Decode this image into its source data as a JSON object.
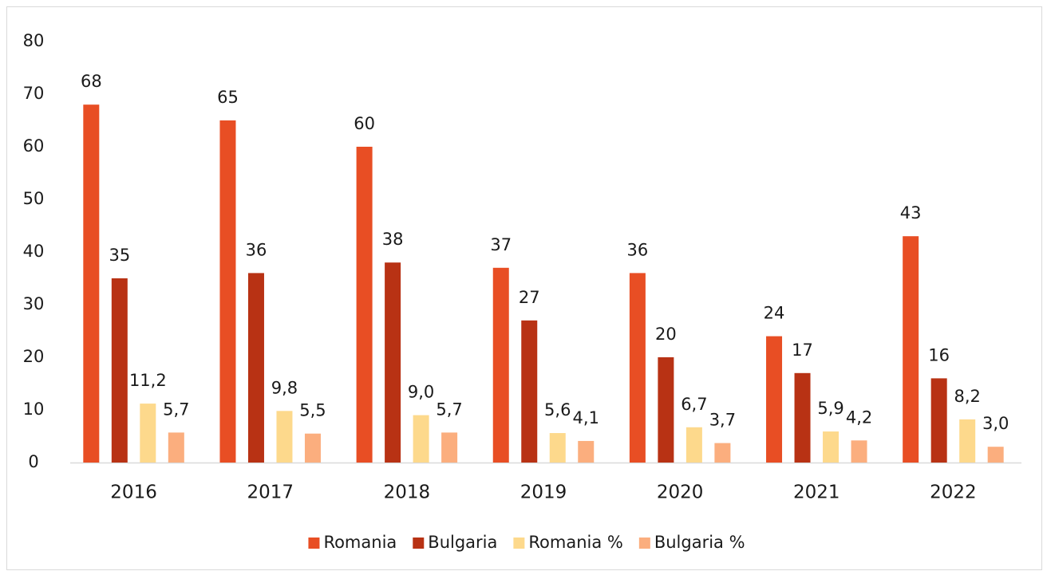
{
  "chart_data": {
    "type": "bar",
    "categories": [
      "2016",
      "2017",
      "2018",
      "2019",
      "2020",
      "2021",
      "2022"
    ],
    "series": [
      {
        "name": "Romania",
        "color": "#e84e24",
        "values": [
          68,
          65,
          60,
          37,
          36,
          24,
          43
        ]
      },
      {
        "name": "Bulgaria",
        "color": "#b83214",
        "values": [
          35,
          36,
          38,
          27,
          20,
          17,
          16
        ]
      },
      {
        "name": "Romania %",
        "color": "#fdd98c",
        "values": [
          11.2,
          9.8,
          9.0,
          5.6,
          6.7,
          5.9,
          8.2
        ],
        "value_labels": [
          "11,2",
          "9,8",
          "9,0",
          "5,6",
          "6,7",
          "5,9",
          "8,2"
        ]
      },
      {
        "name": "Bulgaria %",
        "color": "#fbae7e",
        "values": [
          5.7,
          5.5,
          5.7,
          4.1,
          3.7,
          4.2,
          3.0
        ],
        "value_labels": [
          "5,7",
          "5,5",
          "5,7",
          "4,1",
          "3,7",
          "4,2",
          "3,0"
        ]
      }
    ],
    "ylim": [
      0,
      80
    ],
    "yticks": [
      0,
      10,
      20,
      30,
      40,
      50,
      60,
      70,
      80
    ],
    "grid": false,
    "legend": "bottom"
  }
}
